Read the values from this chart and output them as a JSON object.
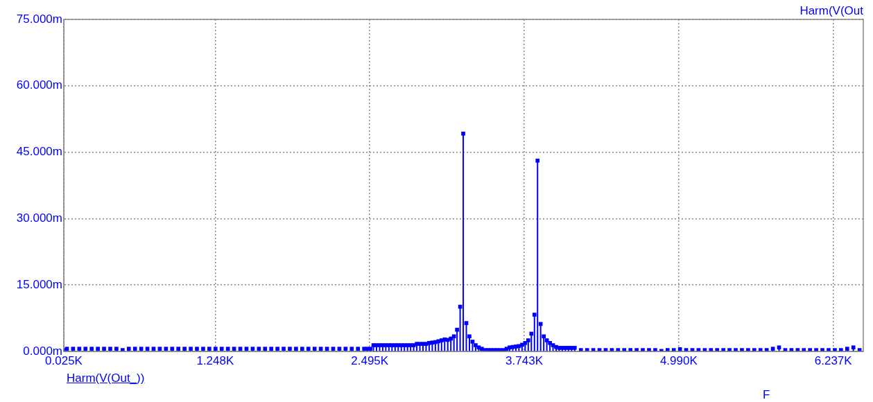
{
  "chart_data": {
    "type": "lollipop",
    "xlabel": "F",
    "ylabel": "Harm(V(Out",
    "legend": "bottom left",
    "grid": true,
    "marker": "square",
    "xlim": [
      25,
      6480
    ],
    "xticks": [
      {
        "value": 25,
        "label": "0.025K"
      },
      {
        "value": 1247.5,
        "label": "1.248K"
      },
      {
        "value": 2495,
        "label": "2.495K"
      },
      {
        "value": 3742.5,
        "label": "3.743K"
      },
      {
        "value": 4990,
        "label": "4.990K"
      },
      {
        "value": 6237.5,
        "label": "6.237K"
      }
    ],
    "ylim": [
      0,
      75
    ],
    "yticks": [
      {
        "value": 0,
        "label": "0.000m"
      },
      {
        "value": 15,
        "label": "15.000m"
      },
      {
        "value": 30,
        "label": "30.000m"
      },
      {
        "value": 45,
        "label": "45.000m"
      },
      {
        "value": 60,
        "label": "60.000m"
      },
      {
        "value": 75,
        "label": "75.000m"
      }
    ],
    "series": [
      {
        "name": "Harm(V(Out_))",
        "color": "#0000ff",
        "x": [
          25,
          50,
          100,
          150,
          200,
          250,
          300,
          350,
          400,
          450,
          500,
          550,
          600,
          650,
          700,
          750,
          800,
          850,
          900,
          950,
          1000,
          1050,
          1100,
          1150,
          1200,
          1250,
          1300,
          1350,
          1400,
          1450,
          1500,
          1550,
          1600,
          1650,
          1700,
          1750,
          1800,
          1850,
          1900,
          1950,
          2000,
          2050,
          2100,
          2150,
          2200,
          2250,
          2300,
          2350,
          2400,
          2450,
          2475,
          2500,
          2525,
          2550,
          2575,
          2600,
          2625,
          2650,
          2675,
          2700,
          2725,
          2750,
          2775,
          2800,
          2825,
          2850,
          2875,
          2900,
          2925,
          2950,
          2975,
          3000,
          3025,
          3050,
          3075,
          3100,
          3125,
          3150,
          3175,
          3200,
          3225,
          3250,
          3275,
          3300,
          3325,
          3350,
          3375,
          3400,
          3425,
          3450,
          3475,
          3500,
          3525,
          3550,
          3575,
          3600,
          3625,
          3650,
          3675,
          3700,
          3725,
          3750,
          3775,
          3800,
          3825,
          3850,
          3875,
          3900,
          3925,
          3950,
          3975,
          4000,
          4025,
          4050,
          4075,
          4100,
          4125,
          4150,
          4200,
          4250,
          4300,
          4350,
          4400,
          4450,
          4500,
          4550,
          4600,
          4650,
          4700,
          4750,
          4800,
          4850,
          4900,
          4950,
          5000,
          5050,
          5100,
          5150,
          5200,
          5250,
          5300,
          5350,
          5400,
          5450,
          5500,
          5550,
          5600,
          5650,
          5700,
          5750,
          5800,
          5850,
          5900,
          5950,
          6000,
          6050,
          6100,
          6150,
          6200,
          6250,
          6300,
          6350,
          6400,
          6450
        ],
        "values": [
          0.3,
          0.6,
          0.6,
          0.6,
          0.6,
          0.6,
          0.6,
          0.6,
          0.6,
          0.6,
          0.3,
          0.6,
          0.6,
          0.6,
          0.6,
          0.6,
          0.6,
          0.6,
          0.6,
          0.6,
          0.6,
          0.6,
          0.6,
          0.6,
          0.6,
          0.6,
          0.6,
          0.6,
          0.6,
          0.6,
          0.6,
          0.6,
          0.6,
          0.6,
          0.6,
          0.6,
          0.6,
          0.6,
          0.6,
          0.6,
          0.6,
          0.6,
          0.6,
          0.6,
          0.6,
          0.6,
          0.6,
          0.6,
          0.6,
          0.6,
          0.6,
          0.6,
          1.4,
          1.4,
          1.4,
          1.4,
          1.4,
          1.4,
          1.4,
          1.4,
          1.4,
          1.4,
          1.4,
          1.4,
          1.4,
          1.4,
          1.7,
          1.7,
          1.7,
          1.7,
          1.9,
          2.0,
          2.1,
          2.3,
          2.5,
          2.7,
          2.6,
          2.9,
          3.4,
          4.9,
          10.1,
          49.2,
          6.4,
          3.4,
          2.2,
          1.4,
          0.9,
          0.6,
          0.3,
          0.3,
          0.3,
          0.3,
          0.3,
          0.3,
          0.3,
          0.6,
          0.9,
          1.0,
          1.1,
          1.2,
          1.5,
          1.9,
          2.5,
          4.0,
          8.3,
          43.1,
          6.2,
          3.4,
          2.5,
          1.9,
          1.4,
          1.0,
          0.8,
          0.8,
          0.8,
          0.8,
          0.8,
          0.8,
          0.3,
          0.3,
          0.3,
          0.3,
          0.3,
          0.3,
          0.3,
          0.3,
          0.3,
          0.3,
          0.3,
          0.3,
          0.3,
          0.1,
          0.3,
          0.3,
          0.5,
          0.3,
          0.3,
          0.3,
          0.3,
          0.3,
          0.3,
          0.3,
          0.3,
          0.3,
          0.3,
          0.3,
          0.3,
          0.3,
          0.3,
          0.6,
          0.9,
          0.3,
          0.3,
          0.3,
          0.3,
          0.3,
          0.3,
          0.3,
          0.3,
          0.3,
          0.3,
          0.6,
          0.9,
          0.3
        ]
      }
    ]
  }
}
